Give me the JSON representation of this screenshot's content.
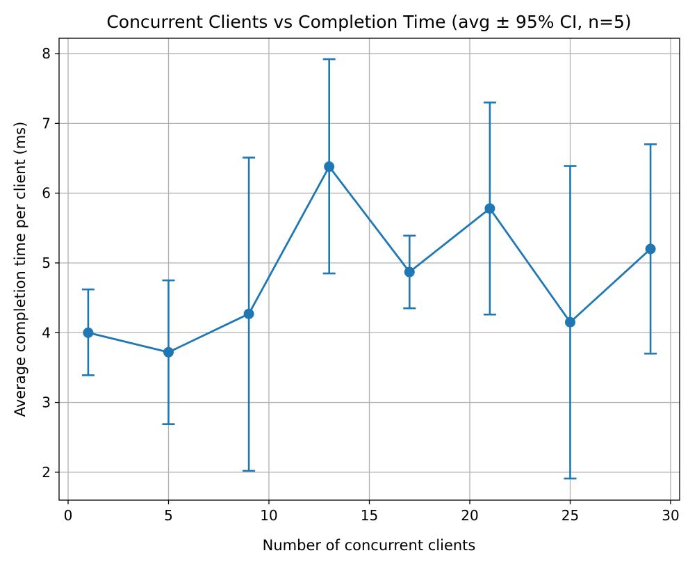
{
  "chart_data": {
    "type": "line",
    "title": "Concurrent Clients vs Completion Time (avg ± 95% CI, n=5)",
    "xlabel": "Number of concurrent clients",
    "ylabel": "Average completion time per client (ms)",
    "xlim": [
      -0.45,
      30.45
    ],
    "ylim": [
      1.6,
      8.22
    ],
    "xticks": [
      0,
      5,
      10,
      15,
      20,
      25,
      30
    ],
    "yticks": [
      2,
      3,
      4,
      5,
      6,
      7,
      8
    ],
    "grid": true,
    "color": "#1f77b4",
    "series": [
      {
        "x": [
          1,
          5,
          9,
          13,
          17,
          21,
          25,
          29
        ],
        "y": [
          4.0,
          3.72,
          4.27,
          6.38,
          4.87,
          5.78,
          4.15,
          5.2
        ],
        "ci_low": [
          3.39,
          2.69,
          2.02,
          4.85,
          4.35,
          4.26,
          1.91,
          3.7
        ],
        "ci_high": [
          4.62,
          4.75,
          6.51,
          7.92,
          5.39,
          7.3,
          6.39,
          6.7
        ]
      }
    ]
  }
}
